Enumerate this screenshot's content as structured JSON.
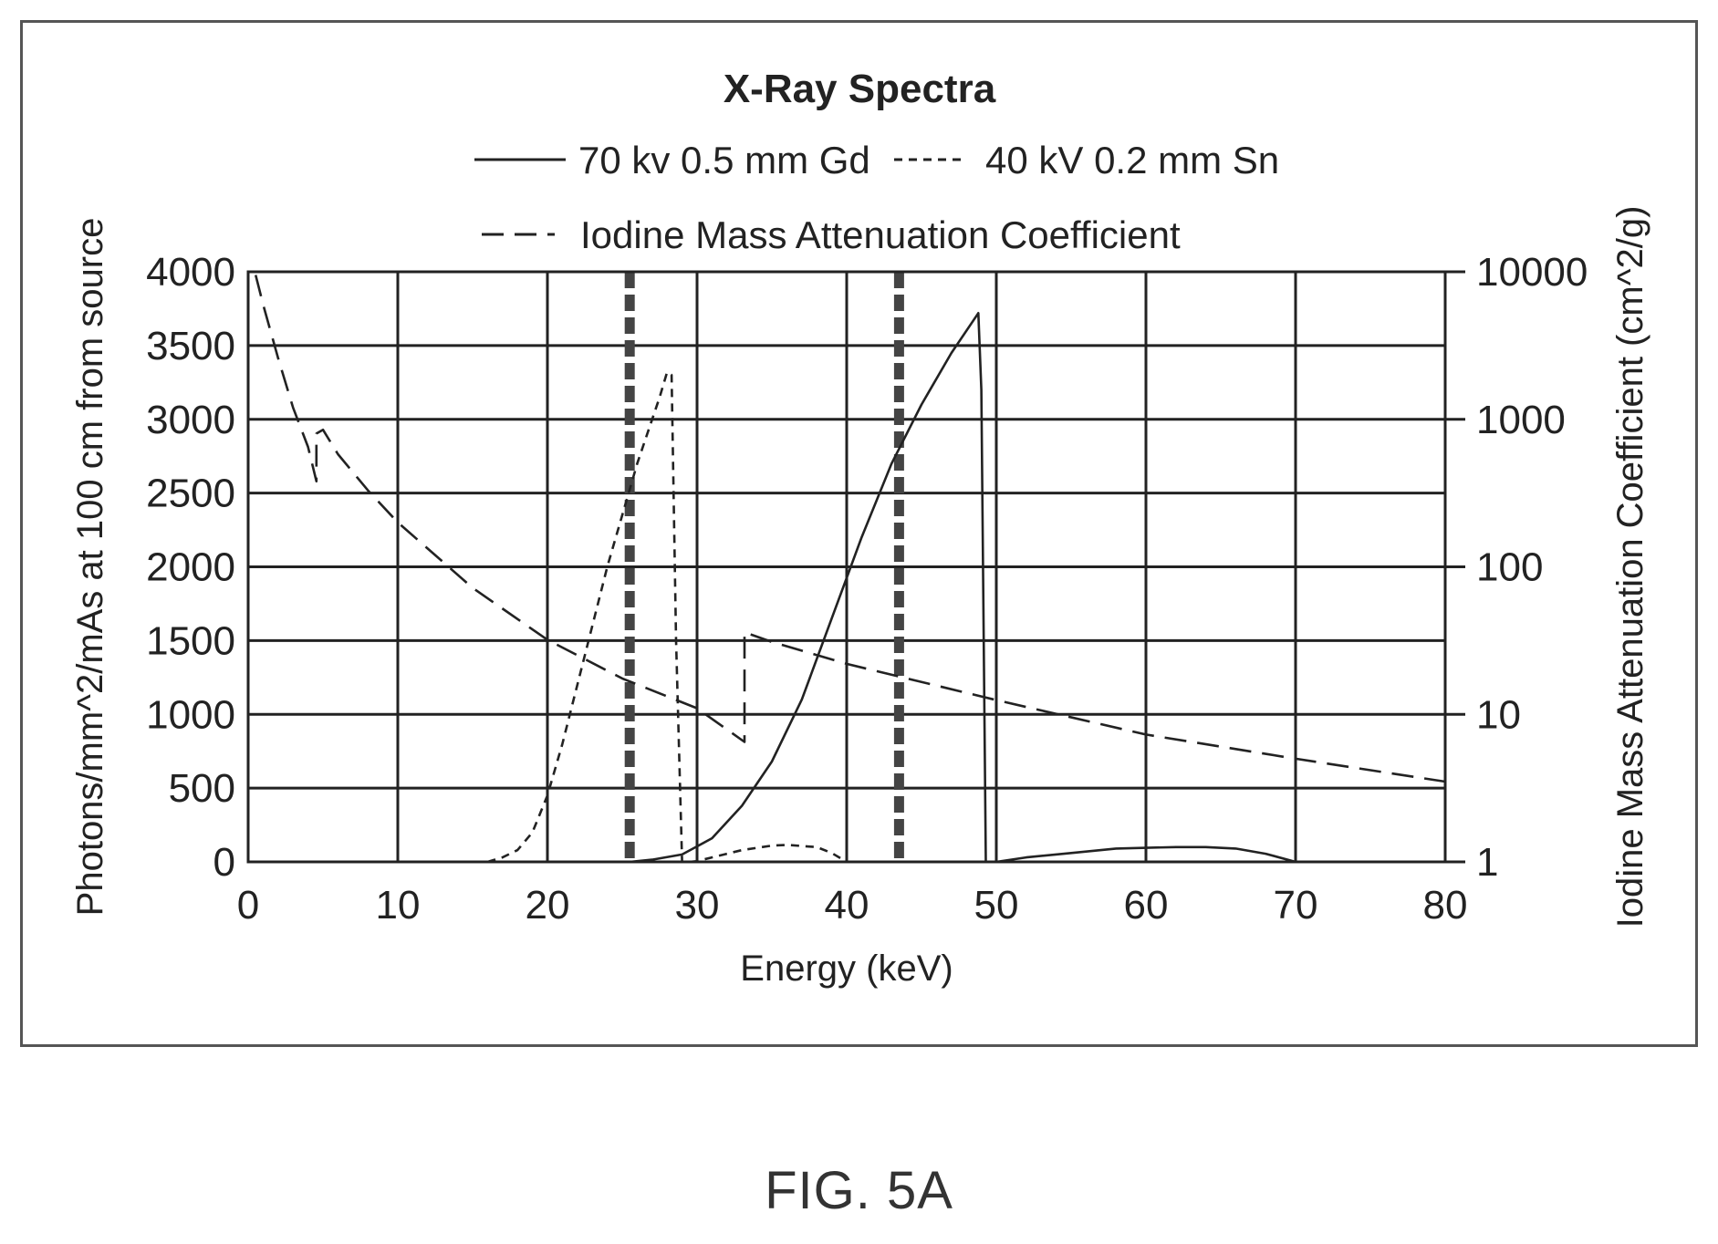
{
  "figure_caption": "FIG. 5A",
  "chart_data": {
    "type": "line",
    "title": "X-Ray Spectra",
    "xlabel": "Energy (keV)",
    "ylabel": "Photons/mm^2/mAs at 100 cm from source",
    "y2label": "Iodine Mass Attenuation Coefficient (cm^2/g)",
    "xlim": [
      0,
      80
    ],
    "ylim": [
      0,
      4000
    ],
    "y2lim": [
      1,
      10000
    ],
    "y2scale": "log",
    "grid": true,
    "legend_placement": "top-center",
    "x_ticks": [
      "0",
      "10",
      "20",
      "30",
      "40",
      "50",
      "60",
      "70",
      "80"
    ],
    "y_ticks": [
      "0",
      "500",
      "1000",
      "1500",
      "2000",
      "2500",
      "3000",
      "3500",
      "4000"
    ],
    "y2_ticks": [
      "1",
      "10",
      "100",
      "1000",
      "10000"
    ],
    "legend": [
      "70 kv 0.5 mm Gd",
      "40 kV 0.2 mm Sn",
      "Iodine Mass Attenuation Coefficient"
    ],
    "series": [
      {
        "name": "70 kv 0.5 mm Gd",
        "axis": "left",
        "style": "solid",
        "x": [
          25.5,
          27,
          29,
          31,
          33,
          35,
          37,
          39,
          41,
          43,
          45,
          47,
          48.8,
          49,
          49.3,
          50,
          52,
          55,
          58,
          62,
          64,
          66,
          68,
          70
        ],
        "y": [
          0,
          15,
          50,
          160,
          380,
          680,
          1100,
          1650,
          2200,
          2700,
          3100,
          3450,
          3720,
          3200,
          0,
          0,
          30,
          60,
          90,
          100,
          100,
          90,
          55,
          0
        ]
      },
      {
        "name": "40 kV 0.2 mm Sn",
        "axis": "left",
        "style": "short-dash",
        "x": [
          16,
          17,
          18,
          19,
          20,
          21,
          22,
          23,
          24,
          25,
          26,
          27,
          27.5,
          28,
          28.3,
          28.6,
          29,
          29.5,
          30,
          31,
          33,
          35,
          36,
          38,
          39,
          40
        ],
        "y": [
          0,
          30,
          80,
          200,
          450,
          800,
          1200,
          1600,
          2000,
          2350,
          2700,
          3000,
          3150,
          3320,
          3300,
          1500,
          0,
          0,
          5,
          30,
          80,
          110,
          115,
          100,
          60,
          0
        ]
      },
      {
        "name": "Iodine Mass Attenuation Coefficient",
        "axis": "right",
        "style": "long-dash",
        "x": [
          0.5,
          1,
          2,
          3,
          4,
          4.56,
          4.56,
          5,
          6,
          8,
          10,
          15,
          20,
          25,
          30,
          33.17,
          33.17,
          35,
          40,
          50,
          60,
          70,
          80
        ],
        "y": [
          9500,
          6000,
          2600,
          1200,
          650,
          380,
          800,
          850,
          580,
          330,
          200,
          72,
          32,
          17.5,
          11,
          6.5,
          36,
          31,
          22,
          12.5,
          7.3,
          5,
          3.5
        ]
      }
    ],
    "vertical_markers": [
      {
        "x": 25.5,
        "style": "heavy-dashed"
      },
      {
        "x": 43.5,
        "style": "heavy-dashed"
      }
    ]
  }
}
